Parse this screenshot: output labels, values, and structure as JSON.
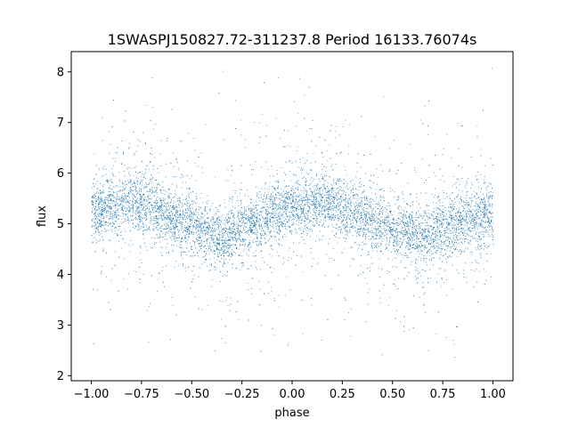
{
  "chart_data": {
    "type": "scatter",
    "title": "1SWASPJ150827.72-311237.8 Period 16133.76074s",
    "xlabel": "phase",
    "ylabel": "flux",
    "xlim": [
      -1.1,
      1.1
    ],
    "ylim": [
      1.9,
      8.4
    ],
    "xticks": [
      -1.0,
      -0.75,
      -0.5,
      -0.25,
      0.0,
      0.25,
      0.5,
      0.75,
      1.0
    ],
    "xtick_labels": [
      "−1.00",
      "−0.75",
      "−0.50",
      "−0.25",
      "0.00",
      "0.25",
      "0.50",
      "0.75",
      "1.00"
    ],
    "yticks": [
      2,
      3,
      4,
      5,
      6,
      7,
      8
    ],
    "ytick_labels": [
      "2",
      "3",
      "4",
      "5",
      "6",
      "7",
      "8"
    ],
    "grid": false,
    "marker_color": "#1f77b4",
    "series": [
      {
        "x": [
          -1.0,
          -0.9,
          -0.8,
          -0.7,
          -0.6,
          -0.5,
          -0.4,
          -0.35,
          -0.3,
          -0.2,
          -0.1,
          0.0,
          0.1,
          0.15,
          0.2,
          0.3,
          0.4,
          0.5,
          0.6,
          0.65,
          0.7,
          0.8,
          0.9,
          1.0
        ],
        "y": [
          5.2,
          5.4,
          5.45,
          5.35,
          5.15,
          4.95,
          4.8,
          4.7,
          4.8,
          5.0,
          5.2,
          5.3,
          5.4,
          5.42,
          5.4,
          5.25,
          5.05,
          4.85,
          4.75,
          4.7,
          4.8,
          5.0,
          5.15,
          5.25
        ]
      }
    ]
  }
}
